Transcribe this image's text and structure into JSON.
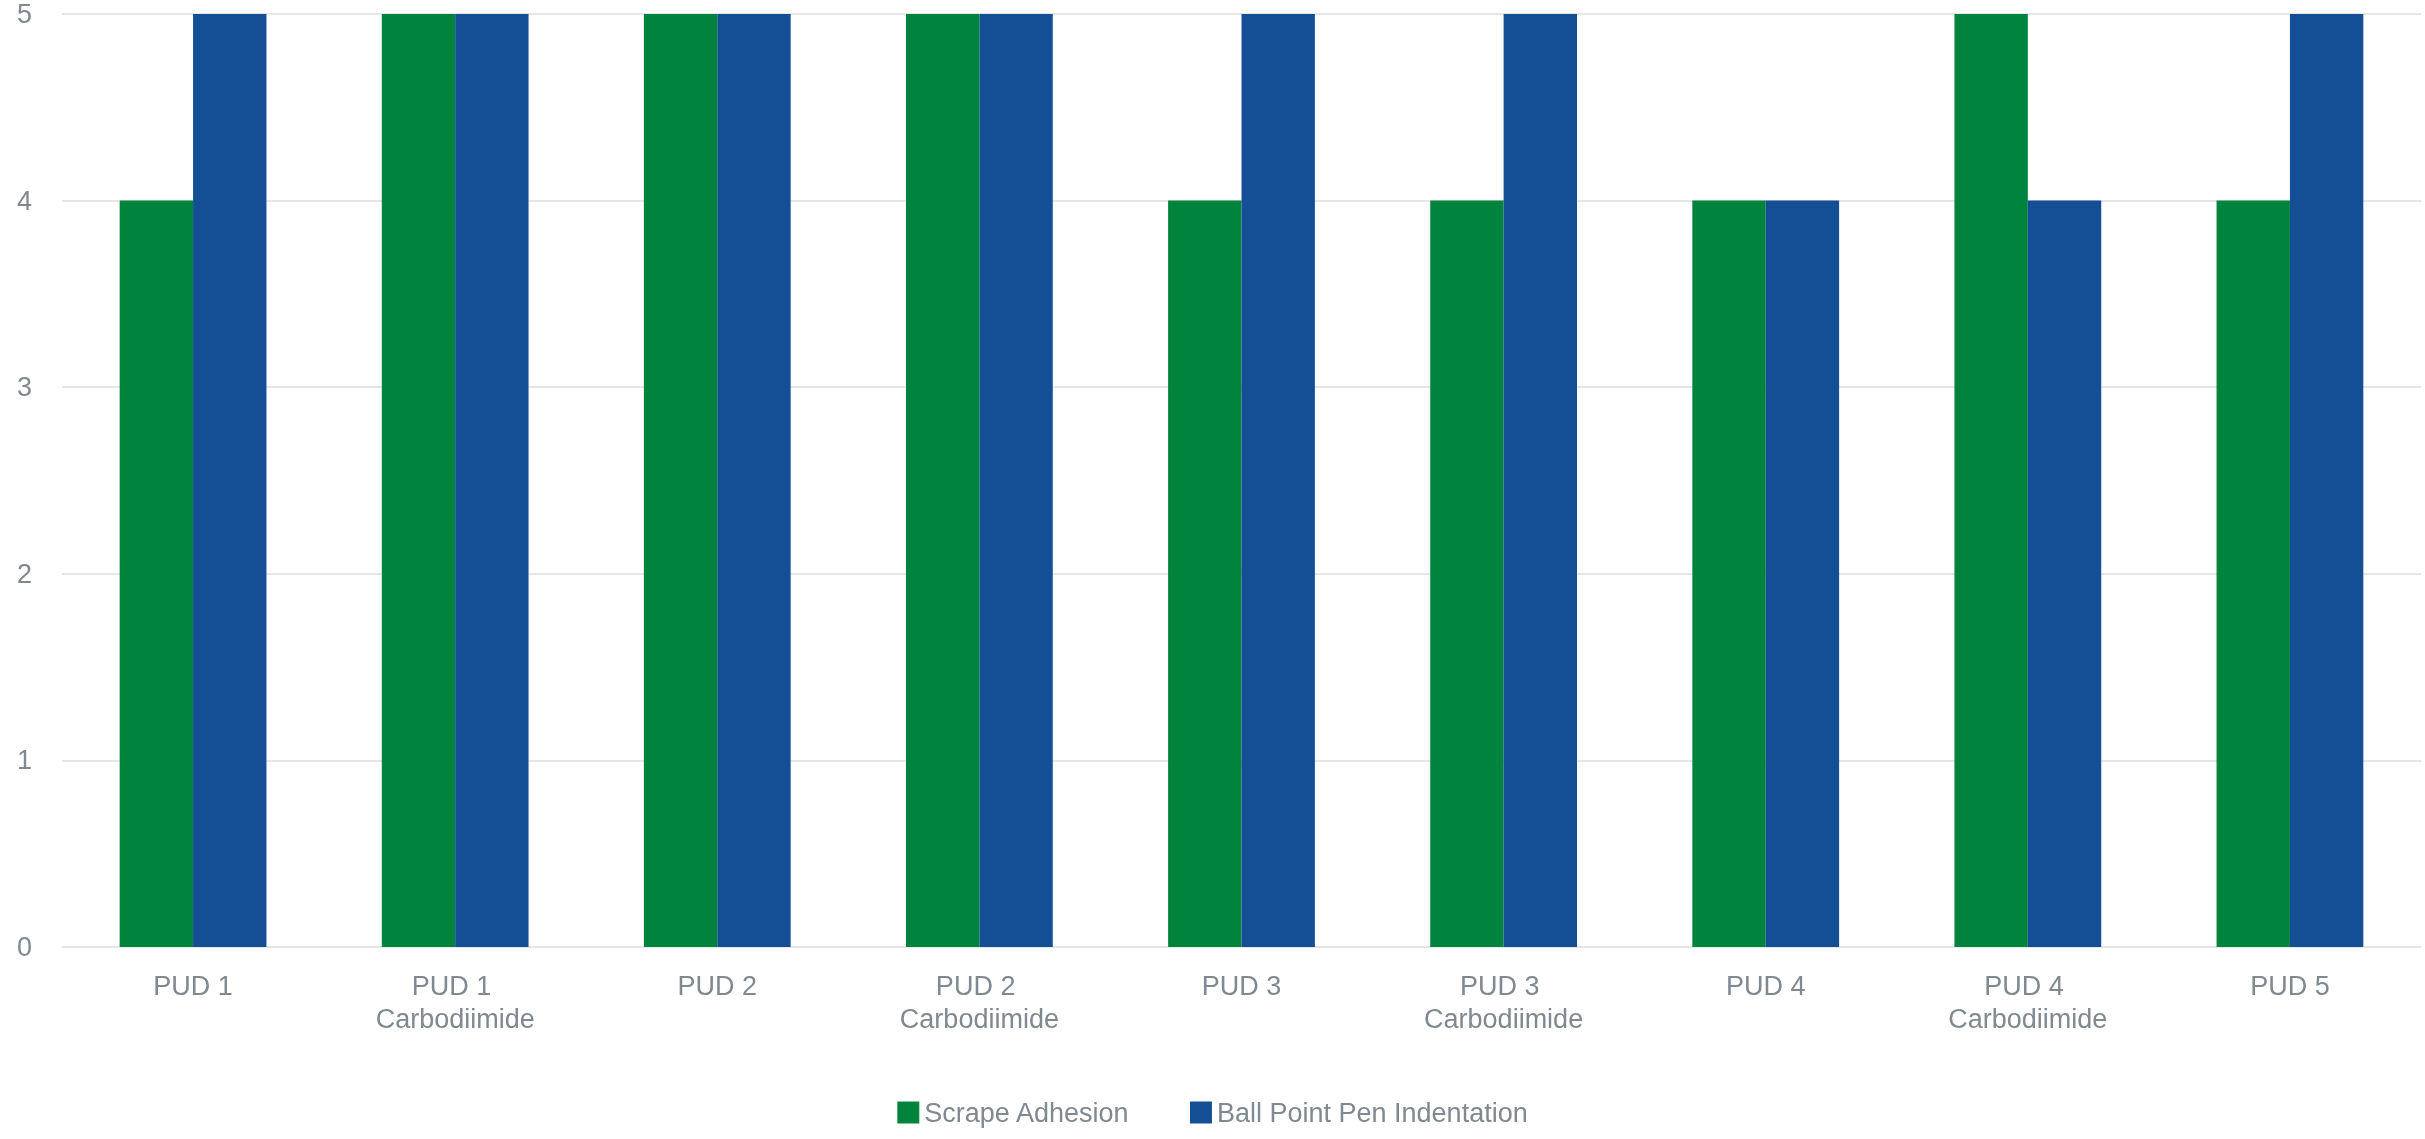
{
  "chart_data": {
    "type": "bar",
    "categories": [
      "PUD 1",
      "PUD 1 Carbodiimide",
      "PUD 2",
      "PUD 2 Carbodiimide",
      "PUD 3",
      "PUD 3 Carbodiimide",
      "PUD 4",
      "PUD 4 Carbodiimide",
      "PUD 5"
    ],
    "series": [
      {
        "name": "Scrape Adhesion",
        "color": "#00843d",
        "values": [
          4,
          5,
          5,
          5,
          4,
          4,
          4,
          5,
          4
        ]
      },
      {
        "name": "Ball Point Pen Indentation",
        "color": "#144f96",
        "values": [
          5,
          5,
          5,
          5,
          5,
          5,
          4,
          4,
          5
        ]
      }
    ],
    "ylim": [
      0,
      5
    ],
    "yticks": [
      0,
      1,
      2,
      3,
      4,
      5
    ],
    "grid": "y",
    "legend": "bottom"
  }
}
